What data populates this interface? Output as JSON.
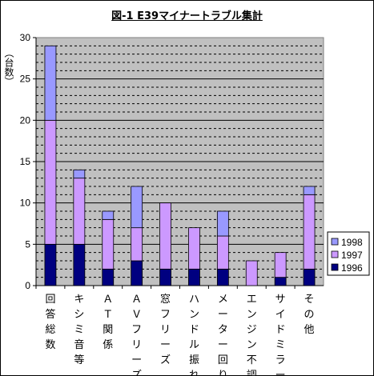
{
  "chart_data": {
    "type": "bar",
    "stacked": true,
    "title": "図-1  E39マイナートラブル集計",
    "ylabel": "（台数）",
    "ylim": [
      0,
      30
    ],
    "yticks": [
      "0",
      "5",
      "10",
      "15",
      "20",
      "25",
      "30"
    ],
    "grid": true,
    "legend": "right",
    "categories": [
      "回答総数",
      "キシミ音等",
      "ＡＴ関係",
      "ＡＶフリーズ",
      "窓フリーズ",
      "ハンドル振れ",
      "メーター回り",
      "エンジン不調",
      "サイドミラー",
      "その他"
    ],
    "series": [
      {
        "name": "1996",
        "color": "#000080",
        "values": [
          5,
          5,
          2,
          3,
          2,
          2,
          2,
          0,
          1,
          2
        ]
      },
      {
        "name": "1997",
        "color": "#cc99ff",
        "values": [
          15,
          8,
          6,
          4,
          8,
          5,
          4,
          3,
          3,
          9
        ]
      },
      {
        "name": "1998",
        "color": "#9999ff",
        "values": [
          9,
          1,
          1,
          5,
          0,
          0,
          3,
          0,
          0,
          1
        ]
      }
    ],
    "legend_order": [
      "1998",
      "1997",
      "1996"
    ],
    "plot_background": "#c0c0c0"
  }
}
